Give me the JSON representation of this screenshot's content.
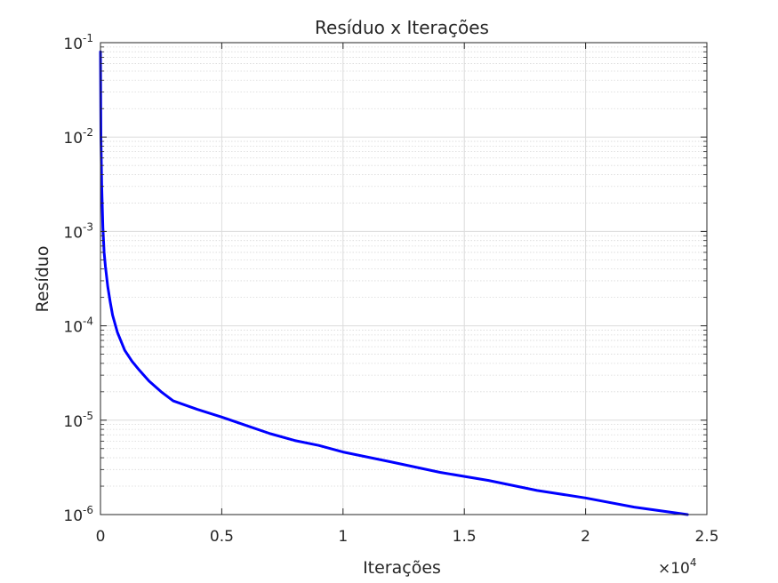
{
  "chart_data": {
    "type": "line",
    "title": "Resíduo x Iterações",
    "xlabel": "Iterações",
    "ylabel": "Resíduo",
    "x_multiplier": {
      "base": "×10",
      "exp": "4"
    },
    "xlim": [
      0,
      25000
    ],
    "ylim": [
      1e-06,
      0.1
    ],
    "yscale": "log",
    "grid": true,
    "minor_grid": true,
    "x_ticks": [
      {
        "value": 0,
        "label": "0"
      },
      {
        "value": 5000,
        "label": "0.5"
      },
      {
        "value": 10000,
        "label": "1"
      },
      {
        "value": 15000,
        "label": "1.5"
      },
      {
        "value": 20000,
        "label": "2"
      },
      {
        "value": 25000,
        "label": "2.5"
      }
    ],
    "y_ticks": [
      {
        "value": 1e-06,
        "base": "10",
        "exp": "-6"
      },
      {
        "value": 1e-05,
        "base": "10",
        "exp": "-5"
      },
      {
        "value": 0.0001,
        "base": "10",
        "exp": "-4"
      },
      {
        "value": 0.001,
        "base": "10",
        "exp": "-3"
      },
      {
        "value": 0.01,
        "base": "10",
        "exp": "-2"
      },
      {
        "value": 0.1,
        "base": "10",
        "exp": "-1"
      }
    ],
    "series": [
      {
        "color": "#0000ff",
        "x": [
          1,
          20,
          50,
          100,
          150,
          200,
          300,
          400,
          500,
          700,
          1000,
          1300,
          1600,
          2000,
          2500,
          3000,
          4000,
          5000,
          6000,
          7000,
          8000,
          9000,
          10000,
          12000,
          14000,
          16000,
          18000,
          20000,
          22000,
          24200
        ],
        "y": [
          0.08,
          0.01,
          0.003,
          0.0011,
          0.0006,
          0.00043,
          0.00026,
          0.00018,
          0.00013,
          8.5e-05,
          5.5e-05,
          4.2e-05,
          3.4e-05,
          2.6e-05,
          2e-05,
          1.6e-05,
          1.3e-05,
          1.08e-05,
          8.8e-06,
          7.2e-06,
          6.1e-06,
          5.4e-06,
          4.6e-06,
          3.6e-06,
          2.8e-06,
          2.3e-06,
          1.8e-06,
          1.5e-06,
          1.2e-06,
          1e-06
        ]
      }
    ]
  }
}
